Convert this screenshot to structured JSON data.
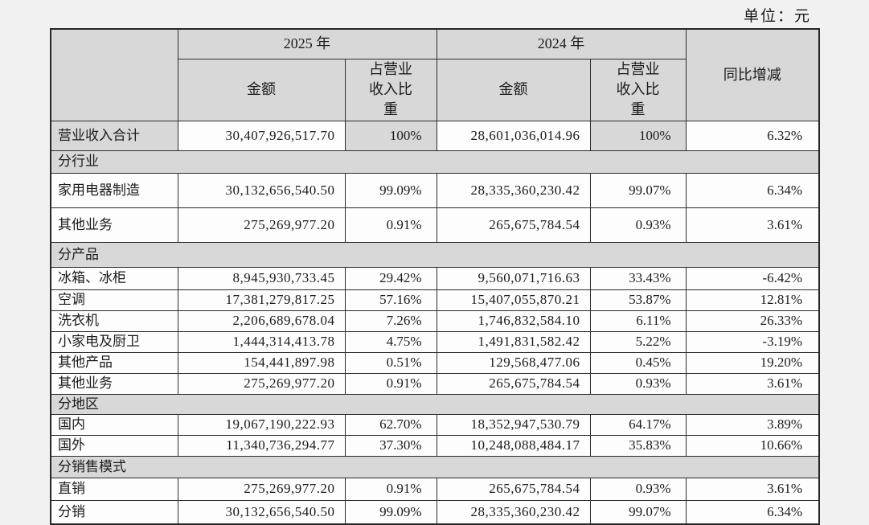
{
  "unit_label": "单位：元",
  "table": {
    "year_headers": [
      "2025 年",
      "2024 年"
    ],
    "yoy_header": "同比增减",
    "sub_headers": {
      "amount": "金额",
      "ratio": "占营业收入比重"
    },
    "rows": [
      {
        "type": "total",
        "label": "营业收入合计",
        "amount_2025": "30,407,926,517.70",
        "ratio_2025": "100%",
        "amount_2024": "28,601,036,014.96",
        "ratio_2024": "100%",
        "yoy": "6.32%"
      },
      {
        "type": "section",
        "label": "分行业"
      },
      {
        "type": "data",
        "label": "家用电器制造",
        "amount_2025": "30,132,656,540.50",
        "ratio_2025": "99.09%",
        "amount_2024": "28,335,360,230.42",
        "ratio_2024": "99.07%",
        "yoy": "6.34%"
      },
      {
        "type": "data",
        "label": "其他业务",
        "amount_2025": "275,269,977.20",
        "ratio_2025": "0.91%",
        "amount_2024": "265,675,784.54",
        "ratio_2024": "0.93%",
        "yoy": "3.61%"
      },
      {
        "type": "section",
        "label": "分产品"
      },
      {
        "type": "data",
        "label": "冰箱、冰柜",
        "amount_2025": "8,945,930,733.45",
        "ratio_2025": "29.42%",
        "amount_2024": "9,560,071,716.63",
        "ratio_2024": "33.43%",
        "yoy": "-6.42%"
      },
      {
        "type": "data",
        "label": "空调",
        "amount_2025": "17,381,279,817.25",
        "ratio_2025": "57.16%",
        "amount_2024": "15,407,055,870.21",
        "ratio_2024": "53.87%",
        "yoy": "12.81%"
      },
      {
        "type": "data",
        "label": "洗衣机",
        "amount_2025": "2,206,689,678.04",
        "ratio_2025": "7.26%",
        "amount_2024": "1,746,832,584.10",
        "ratio_2024": "6.11%",
        "yoy": "26.33%"
      },
      {
        "type": "data",
        "label": "小家电及厨卫",
        "amount_2025": "1,444,314,413.78",
        "ratio_2025": "4.75%",
        "amount_2024": "1,491,831,582.42",
        "ratio_2024": "5.22%",
        "yoy": "-3.19%"
      },
      {
        "type": "data",
        "label": "其他产品",
        "amount_2025": "154,441,897.98",
        "ratio_2025": "0.51%",
        "amount_2024": "129,568,477.06",
        "ratio_2024": "0.45%",
        "yoy": "19.20%"
      },
      {
        "type": "data",
        "label": "其他业务",
        "amount_2025": "275,269,977.20",
        "ratio_2025": "0.91%",
        "amount_2024": "265,675,784.54",
        "ratio_2024": "0.93%",
        "yoy": "3.61%"
      },
      {
        "type": "section",
        "label": "分地区"
      },
      {
        "type": "data",
        "label": "国内",
        "amount_2025": "19,067,190,222.93",
        "ratio_2025": "62.70%",
        "amount_2024": "18,352,947,530.79",
        "ratio_2024": "64.17%",
        "yoy": "3.89%"
      },
      {
        "type": "data",
        "label": "国外",
        "amount_2025": "11,340,736,294.77",
        "ratio_2025": "37.30%",
        "amount_2024": "10,248,088,484.17",
        "ratio_2024": "35.83%",
        "yoy": "10.66%"
      },
      {
        "type": "section",
        "label": "分销售模式"
      },
      {
        "type": "data",
        "label": "直销",
        "amount_2025": "275,269,977.20",
        "ratio_2025": "0.91%",
        "amount_2024": "265,675,784.54",
        "ratio_2024": "0.93%",
        "yoy": "3.61%"
      },
      {
        "type": "data",
        "label": "分销",
        "amount_2025": "30,132,656,540.50",
        "ratio_2025": "99.09%",
        "amount_2024": "28,335,360,230.42",
        "ratio_2024": "99.07%",
        "yoy": "6.34%"
      }
    ]
  }
}
